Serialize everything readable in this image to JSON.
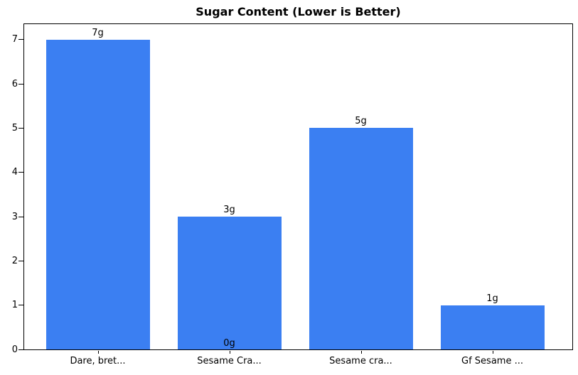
{
  "chart_data": {
    "type": "bar",
    "title": "Sugar Content (Lower is Better)",
    "categories": [
      "Dare, bret...",
      "Sesame Cra...",
      "Sesame cra...",
      "Gf Sesame ..."
    ],
    "values": [
      7,
      3,
      5,
      1
    ],
    "bar_labels": [
      "7g",
      "3g",
      "5g",
      "1g"
    ],
    "extra_labels": [
      {
        "text": "0g",
        "value": 0,
        "category_index": 1
      }
    ],
    "xlabel": "",
    "ylabel": "",
    "y_ticks": [
      0,
      1,
      2,
      3,
      4,
      5,
      6,
      7
    ],
    "ylim": [
      0,
      7.35
    ],
    "bar_color": "#3b7ff2",
    "text_color": "#000000",
    "grid": false,
    "legend": null
  }
}
